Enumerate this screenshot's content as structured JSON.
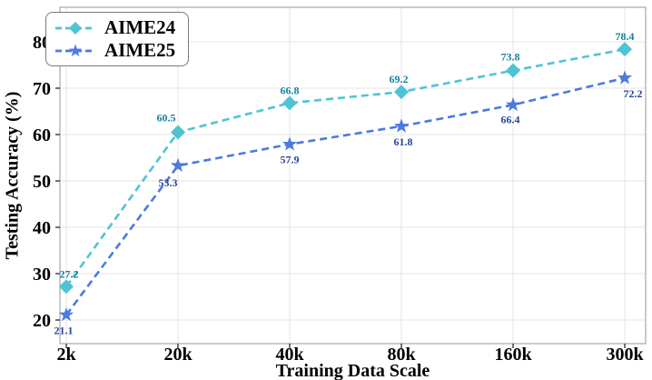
{
  "chart_data": {
    "type": "line",
    "title": "",
    "xlabel": "Training Data Scale",
    "ylabel": "Testing Accuracy (%)",
    "categories": [
      "2k",
      "20k",
      "40k",
      "80k",
      "160k",
      "300k"
    ],
    "series": [
      {
        "name": "AIME24",
        "values": [
          27.2,
          60.5,
          66.8,
          69.2,
          73.8,
          78.4
        ],
        "color": "#4fc3d5",
        "label_color": "#15809e",
        "marker": "diamond",
        "line_style": "dashed"
      },
      {
        "name": "AIME25",
        "values": [
          21.1,
          53.3,
          57.9,
          61.8,
          66.4,
          72.2
        ],
        "color": "#4a7ade",
        "label_color": "#27449b",
        "marker": "star",
        "line_style": "dashed"
      }
    ],
    "y_ticks": [
      20,
      30,
      40,
      50,
      60,
      70,
      80
    ],
    "ylim": [
      15,
      87.5
    ],
    "grid": true,
    "legend_position": "upper left"
  },
  "colors": {
    "grid": "#e6e6e6",
    "spine": "#adadad",
    "tick": "#2a2a2a",
    "text": "#000000",
    "background": "#ffffff"
  }
}
